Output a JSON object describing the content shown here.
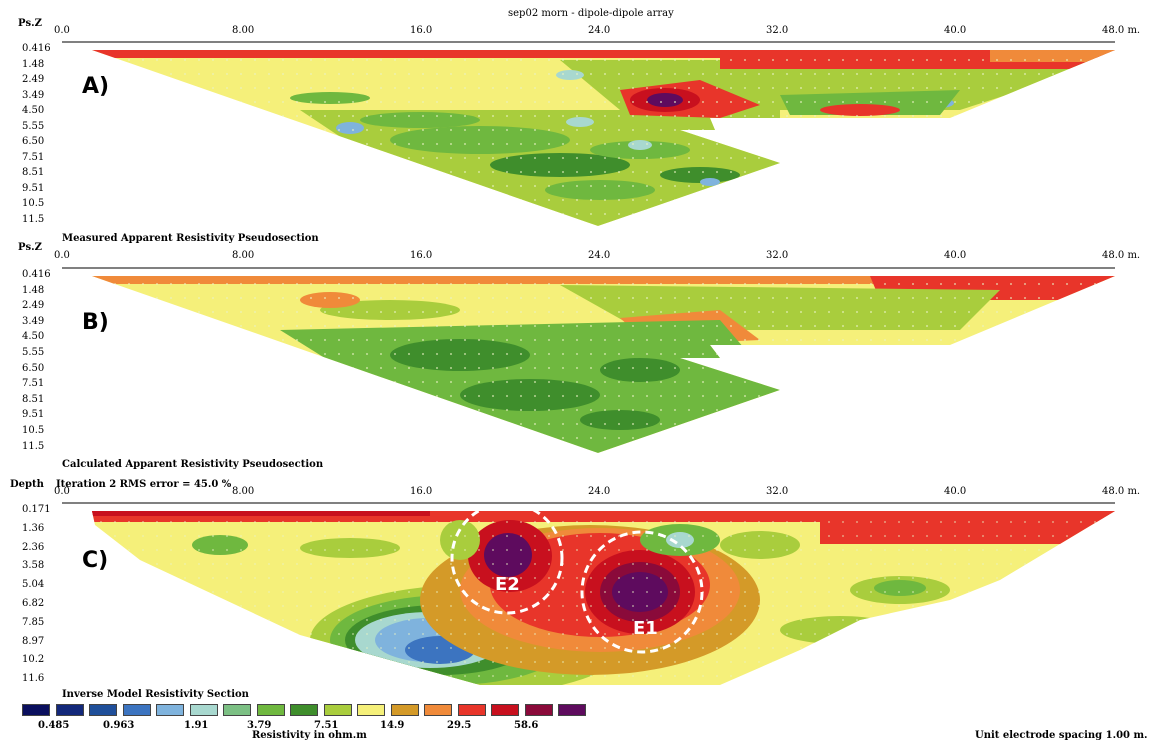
{
  "title": "sep02 morn - dipole-dipole array",
  "panels": [
    {
      "letter": "A)",
      "caption": "Measured Apparent Resistivity Pseudosection",
      "axis_label": "Ps.Z",
      "depths": [
        "0.416",
        "1.48",
        "2.49",
        "3.49",
        "4.50",
        "5.55",
        "6.50",
        "7.51",
        "8.51",
        "9.51",
        "10.5",
        "11.5"
      ]
    },
    {
      "letter": "B)",
      "caption": "Calculated Apparent Resistivity Pseudosection",
      "axis_label": "Ps.Z",
      "depths": [
        "0.416",
        "1.48",
        "2.49",
        "3.49",
        "4.50",
        "5.55",
        "6.50",
        "7.51",
        "8.51",
        "9.51",
        "10.5",
        "11.5"
      ]
    },
    {
      "letter": "C)",
      "caption": "Inverse Model Resistivity Section",
      "axis_label": "Depth",
      "header": "Iteration 2 RMS error = 45.0 %",
      "depths": [
        "0.171",
        "1.36",
        "2.36",
        "3.58",
        "5.04",
        "6.82",
        "7.85",
        "8.97",
        "10.2",
        "11.6"
      ]
    }
  ],
  "x_ticks": [
    "0.0",
    "8.00",
    "16.0",
    "24.0",
    "32.0",
    "40.0",
    "48.0 m."
  ],
  "annotations": [
    "E2",
    "E1"
  ],
  "legend": {
    "colors": [
      "#0a0f5e",
      "#13287a",
      "#1f4f9a",
      "#3c74c0",
      "#7fb3dd",
      "#a8d8cf",
      "#7cc084",
      "#6fb83f",
      "#3f8e2c",
      "#a9cd3d",
      "#f5f07a",
      "#d49a28",
      "#f08a3a",
      "#e8352a",
      "#c8101e",
      "#8a0a3a",
      "#5e0b5e"
    ],
    "labels": [
      "0.485",
      "0.963",
      "1.91",
      "3.79",
      "7.51",
      "14.9",
      "29.5",
      "58.6"
    ],
    "title": "Resistivity in ohm.m"
  },
  "footer": "Unit electrode spacing 1.00 m.",
  "chart_data": [
    {
      "type": "heatmap",
      "title": "Measured Apparent Resistivity Pseudosection",
      "xlabel": "",
      "ylabel": "Ps.Z",
      "xlim": [
        0,
        48
      ],
      "ylim": [
        11.5,
        0.416
      ]
    },
    {
      "type": "heatmap",
      "title": "Calculated Apparent Resistivity Pseudosection",
      "xlabel": "",
      "ylabel": "Ps.Z",
      "xlim": [
        0,
        48
      ],
      "ylim": [
        11.5,
        0.416
      ]
    },
    {
      "type": "heatmap",
      "title": "Inverse Model Resistivity Section",
      "xlabel": "",
      "ylabel": "Depth",
      "xlim": [
        0,
        48
      ],
      "ylim": [
        11.6,
        0.171
      ],
      "color_scale": [
        0.485,
        0.963,
        1.91,
        3.79,
        7.51,
        14.9,
        29.5,
        58.6
      ]
    }
  ]
}
